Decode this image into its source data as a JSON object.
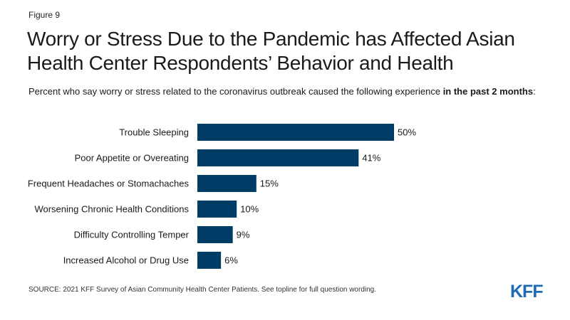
{
  "figure_label": "Figure 9",
  "title": "Worry or Stress Due to the Pandemic has Affected Asian Health Center Respondents’ Behavior and Health",
  "subtitle": {
    "text": "Percent who say worry or stress related to the coronavirus outbreak caused the following experience ",
    "bold": "in the past 2 months",
    "suffix": ":"
  },
  "source": "SOURCE: 2021 KFF Survey of Asian Community Health Center Patients. See topline for full question wording.",
  "logo": "KFF",
  "colors": {
    "bar": "#003d66",
    "logo": "#1f6bb3"
  },
  "chart_data": {
    "type": "bar",
    "orientation": "horizontal",
    "categories": [
      "Trouble Sleeping",
      "Poor Appetite or Overeating",
      "Frequent Headaches or Stomachaches",
      "Worsening Chronic Health Conditions",
      "Difficulty Controlling Temper",
      "Increased Alcohol or Drug Use"
    ],
    "values": [
      50,
      41,
      15,
      10,
      9,
      6
    ],
    "value_labels": [
      "50%",
      "41%",
      "15%",
      "10%",
      "9%",
      "6%"
    ],
    "unit": "%",
    "xlim": [
      0,
      50
    ],
    "grid": false,
    "legend": "none"
  }
}
